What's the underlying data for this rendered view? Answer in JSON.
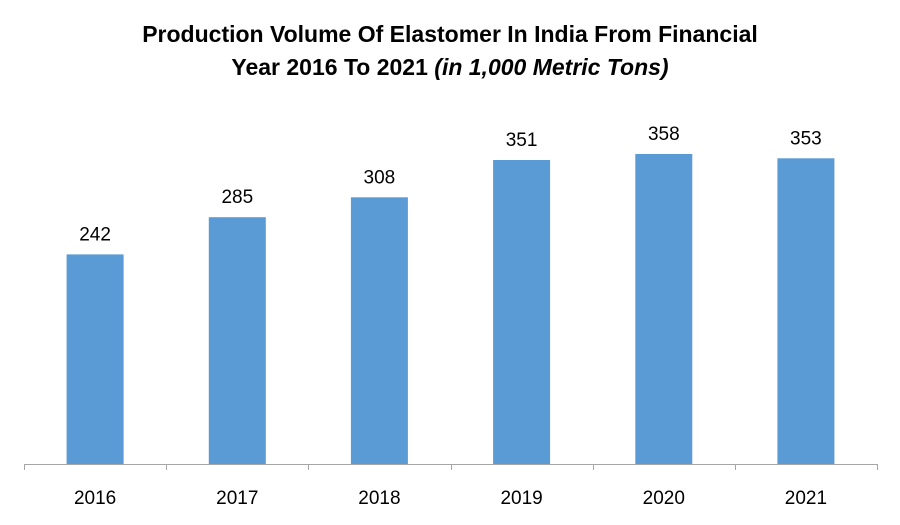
{
  "chart_data": {
    "type": "bar",
    "title_line1": "Production Volume Of Elastomer In India From Financial",
    "title_line2_prefix": "Year 2016 To 2021",
    "title_unit": "(in 1,000 Metric Tons)",
    "categories": [
      "2016",
      "2017",
      "2018",
      "2019",
      "2020",
      "2021"
    ],
    "values": [
      242,
      285,
      308,
      351,
      358,
      353
    ],
    "xlabel": "",
    "ylabel": "",
    "ylim": [
      0,
      380
    ],
    "grid": false,
    "legend": "none",
    "bar_color": "#5B9BD5",
    "axis_color": "#A6A6A6"
  }
}
